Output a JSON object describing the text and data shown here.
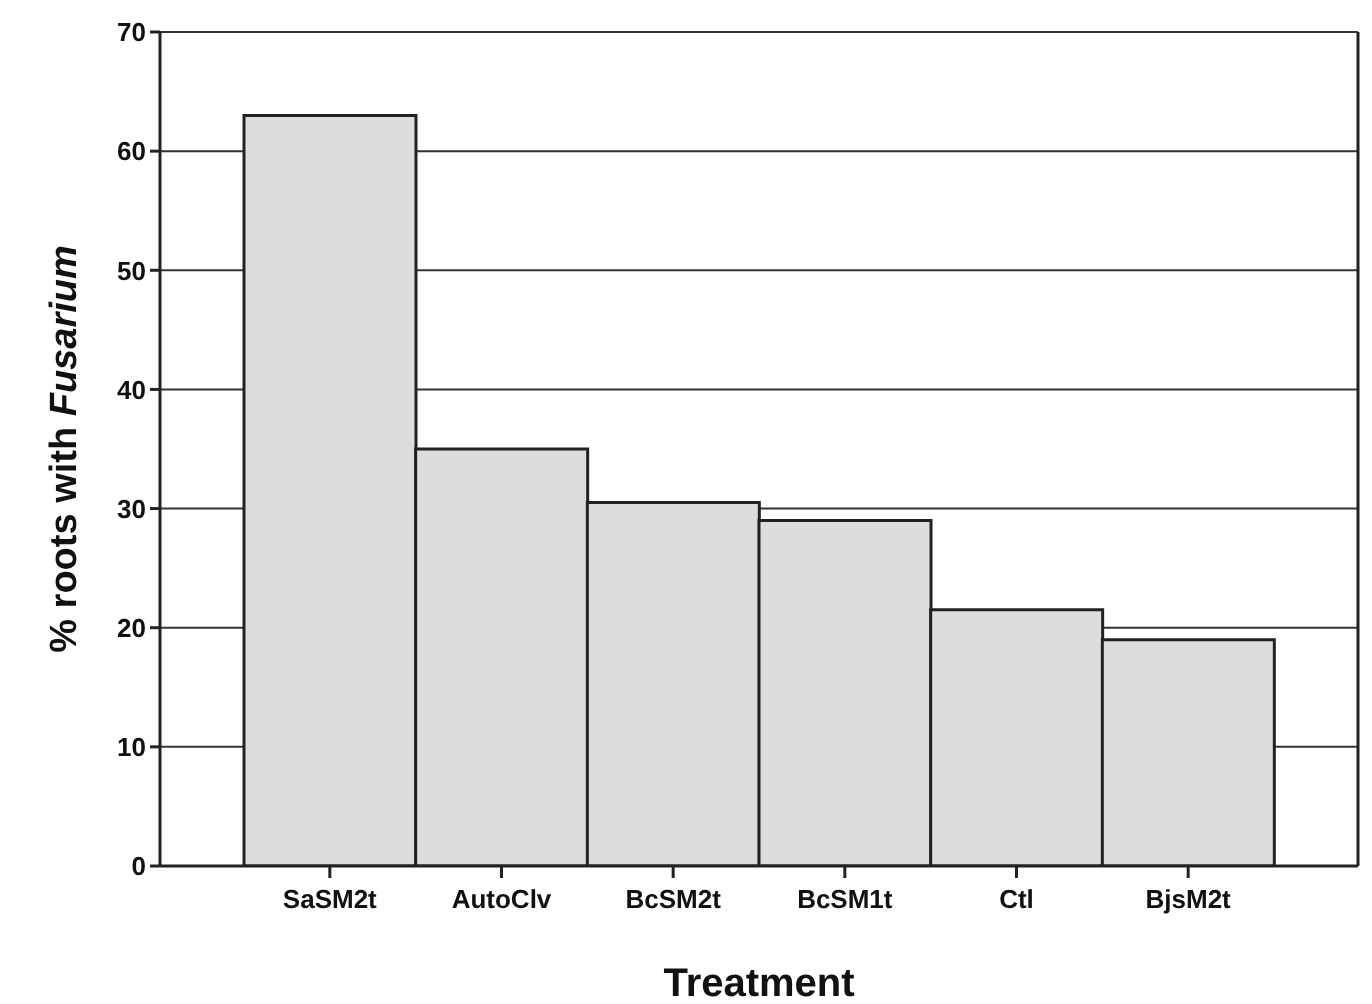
{
  "chart_data": {
    "type": "bar",
    "xlabel": "Treatment",
    "ylabel": "% roots with Fusarium",
    "categories": [
      "SaSM2t",
      "AutoClv",
      "BcSM2t",
      "BcSM1t",
      "Ctl",
      "BjsM2t"
    ],
    "values": [
      63,
      35,
      30.5,
      29,
      21.5,
      19
    ],
    "color": "#dcdddf",
    "ylim": [
      0,
      70
    ],
    "yticks": [
      0,
      10,
      20,
      30,
      40,
      50,
      60,
      70
    ],
    "grid": "y"
  }
}
